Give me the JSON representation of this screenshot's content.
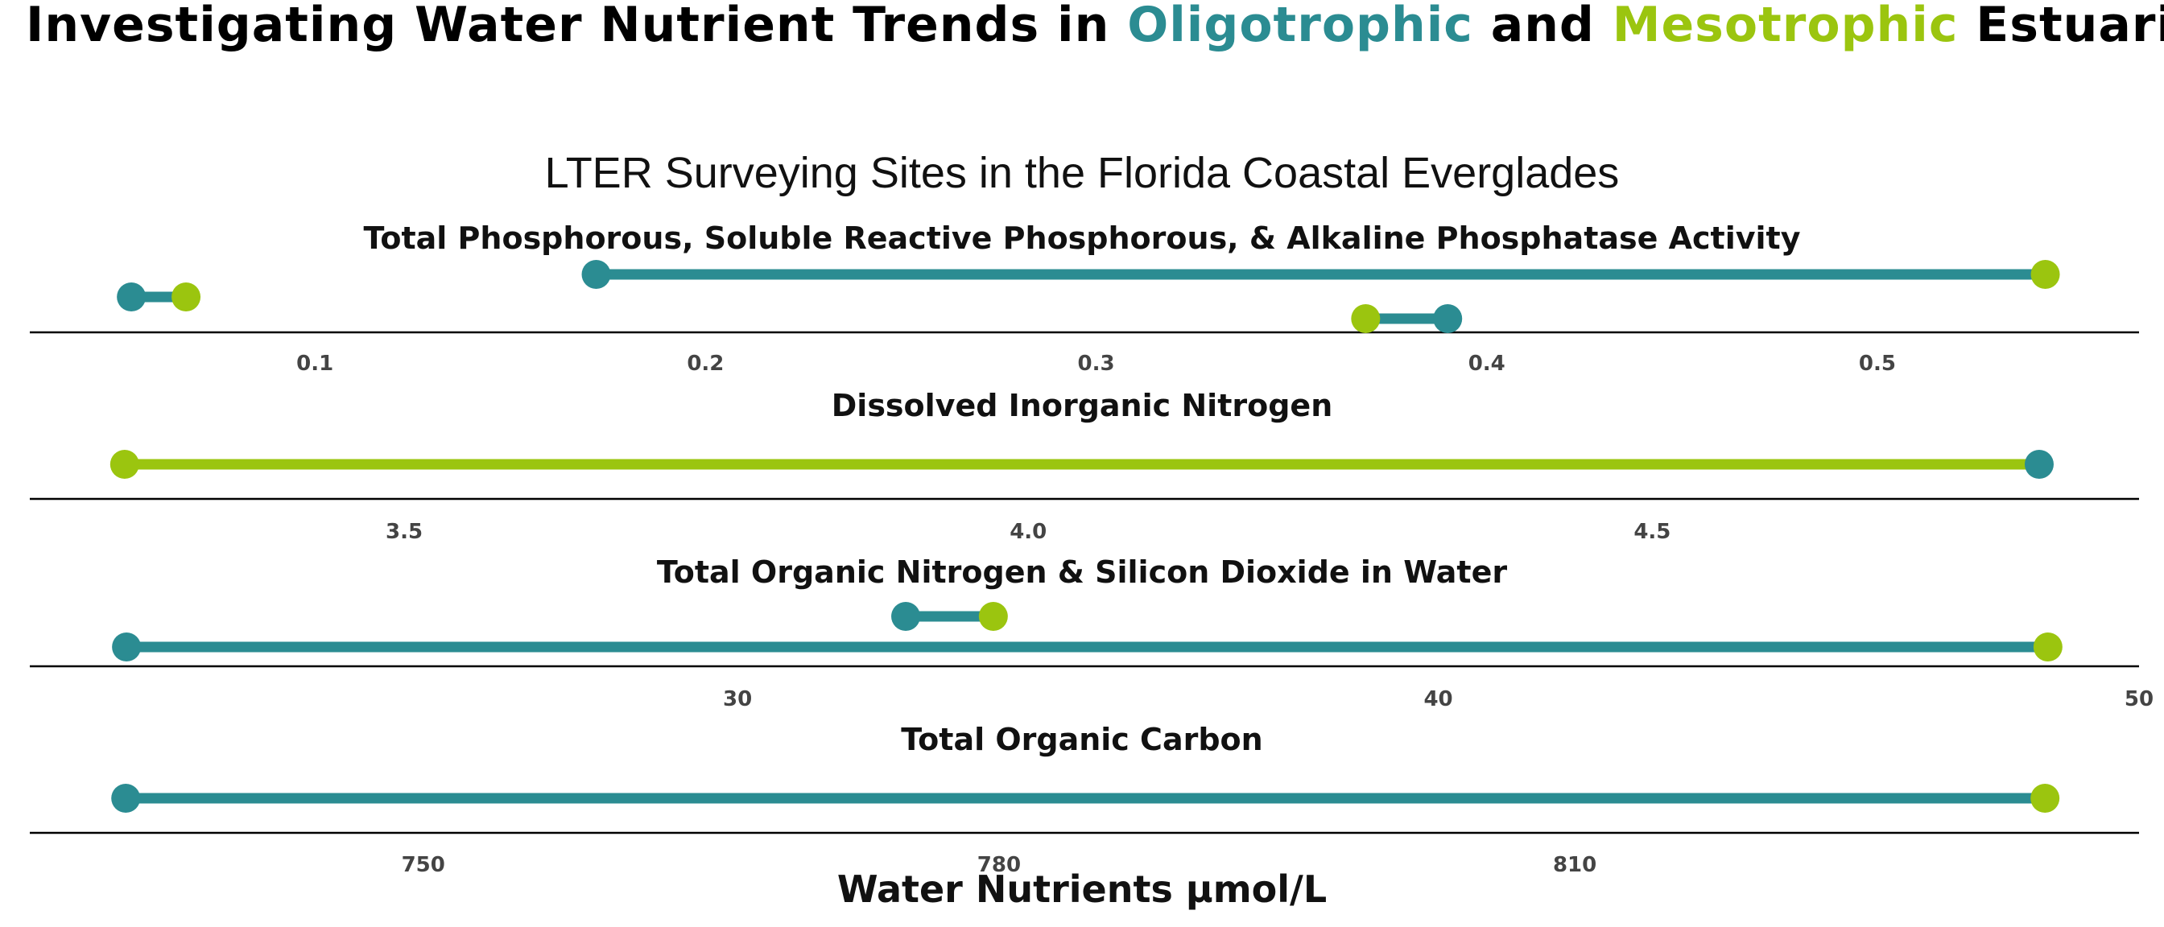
{
  "title": {
    "prefix": "Investigating Water Nutrient Trends in ",
    "oligo": "Oligotrophic",
    "mid": " and ",
    "meso": "Mesotrophic",
    "suffix": " Estuaries"
  },
  "colors": {
    "oligotrophic": "#2b8c92",
    "mesotrophic": "#9bc50f",
    "axis": "#000000"
  },
  "chart_data": {
    "type": "dumbbell",
    "subtitle": "LTER Surveying Sites in the Florida Coastal Everglades",
    "xlabel": "Water Nutrients µmol/L",
    "panels": [
      {
        "title": "Total Phosphorous, Soluble Reactive Phosphorous, & Alkaline Phosphatase Activity",
        "xlim": [
          0.027,
          0.567
        ],
        "ticks": [
          0.1,
          0.2,
          0.3,
          0.4,
          0.5
        ],
        "tick_labels": [
          "0.1",
          "0.2",
          "0.3",
          "0.4",
          "0.5"
        ],
        "rows": [
          {
            "oligotrophic": 0.172,
            "mesotrophic": 0.543
          },
          {
            "oligotrophic": 0.053,
            "mesotrophic": 0.067
          },
          {
            "oligotrophic": 0.39,
            "mesotrophic": 0.369
          }
        ]
      },
      {
        "title": "Dissolved Inorganic Nitrogen",
        "xlim": [
          3.2,
          4.89
        ],
        "ticks": [
          3.5,
          4.0,
          4.5
        ],
        "tick_labels": [
          "3.5",
          "4.0",
          "4.5"
        ],
        "rows": [
          {
            "oligotrophic": 4.81,
            "mesotrophic": 3.276
          }
        ]
      },
      {
        "title": "Total Organic Nitrogen & Silicon Dioxide in Water",
        "xlim": [
          19.9,
          50.0
        ],
        "ticks": [
          30,
          40,
          50
        ],
        "tick_labels": [
          "30",
          "40",
          "50"
        ],
        "rows": [
          {
            "oligotrophic": 32.4,
            "mesotrophic": 33.65
          },
          {
            "oligotrophic": 21.28,
            "mesotrophic": 48.7
          }
        ]
      },
      {
        "title": "Total Organic Carbon",
        "xlim": [
          729.5,
          839.4
        ],
        "ticks": [
          750,
          780,
          810
        ],
        "tick_labels": [
          "750",
          "780",
          "810"
        ],
        "rows": [
          {
            "oligotrophic": 734.5,
            "mesotrophic": 834.5
          }
        ]
      }
    ]
  }
}
